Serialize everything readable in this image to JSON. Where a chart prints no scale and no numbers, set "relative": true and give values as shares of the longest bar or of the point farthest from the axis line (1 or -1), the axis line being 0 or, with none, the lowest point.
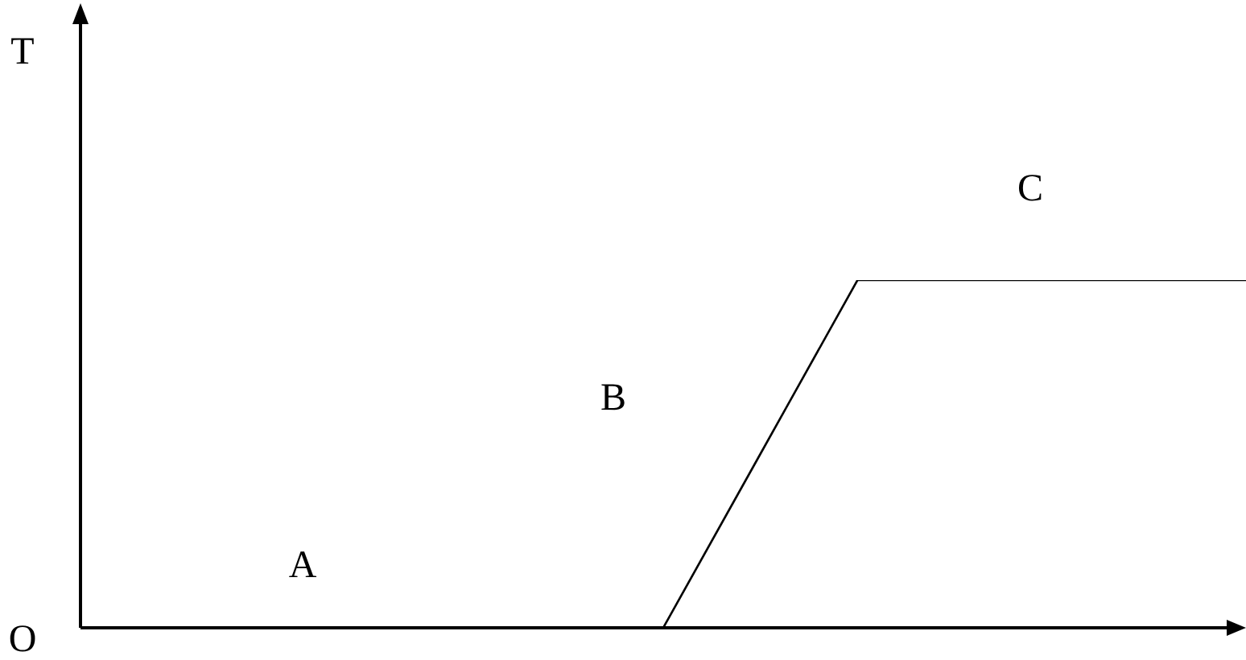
{
  "chart_data": {
    "type": "line",
    "relative": true,
    "categories": [
      null,
      null,
      null,
      null,
      null,
      null,
      null,
      null,
      null,
      null,
      null,
      null,
      null
    ],
    "series": [
      {
        "color": "#000000",
        "values": [
          0,
          0,
          0,
          0,
          0,
          0,
          0,
          0.5,
          1,
          1,
          1,
          1,
          1
        ]
      }
    ],
    "annotations": [
      "T",
      "O",
      "A",
      "B",
      "C"
    ],
    "marker": "none",
    "line_style": "solid",
    "legend": false
  }
}
